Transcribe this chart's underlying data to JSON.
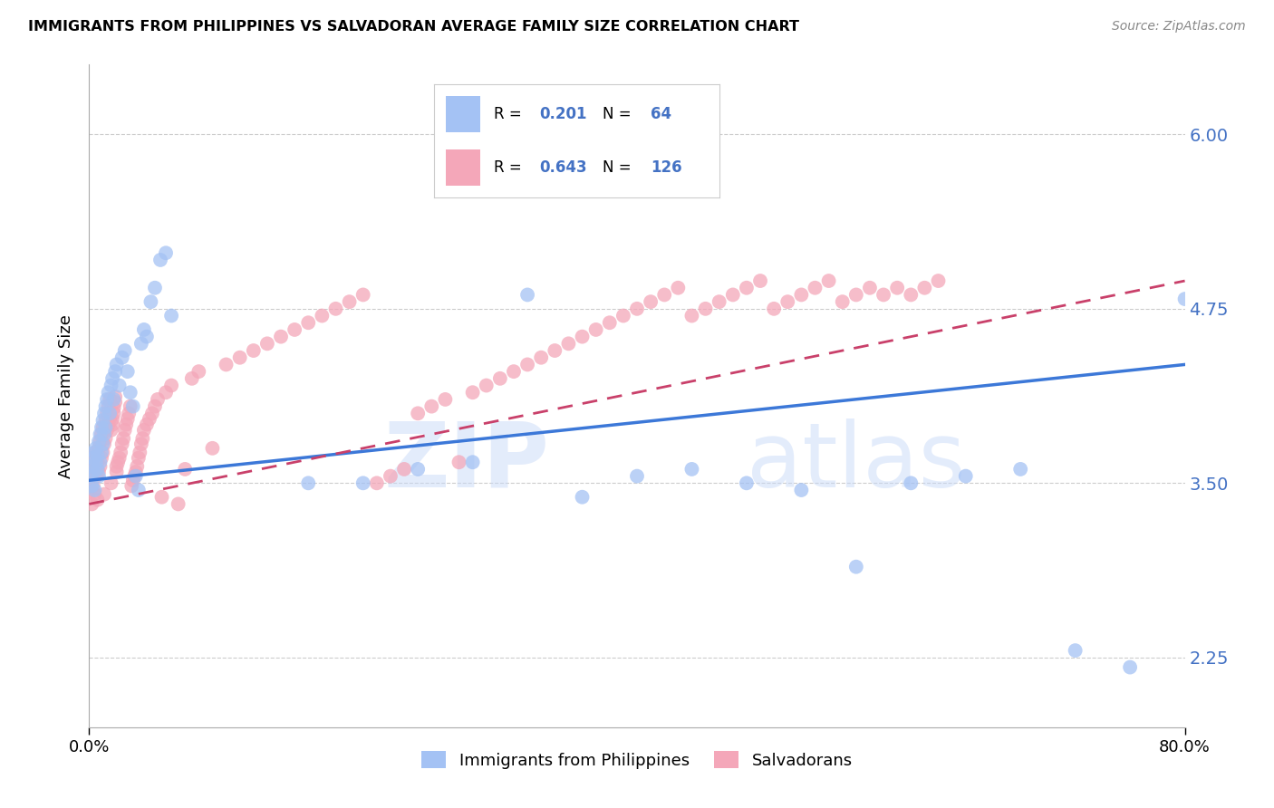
{
  "title": "IMMIGRANTS FROM PHILIPPINES VS SALVADORAN AVERAGE FAMILY SIZE CORRELATION CHART",
  "source": "Source: ZipAtlas.com",
  "ylabel": "Average Family Size",
  "legend_label1": "Immigrants from Philippines",
  "legend_label2": "Salvadorans",
  "r1": 0.201,
  "n1": 64,
  "r2": 0.643,
  "n2": 126,
  "color1": "#a4c2f4",
  "color2": "#f4a7b9",
  "line1_color": "#3c78d8",
  "line2_color": "#c9406a",
  "ytick_labels": [
    "6.00",
    "4.75",
    "3.50",
    "2.25"
  ],
  "ytick_values": [
    6.0,
    4.75,
    3.5,
    2.25
  ],
  "xlim": [
    0.0,
    0.8
  ],
  "ylim": [
    1.75,
    6.5
  ],
  "philippines_x": [
    0.001,
    0.002,
    0.002,
    0.003,
    0.003,
    0.004,
    0.004,
    0.005,
    0.005,
    0.006,
    0.006,
    0.007,
    0.007,
    0.008,
    0.008,
    0.009,
    0.009,
    0.01,
    0.01,
    0.011,
    0.011,
    0.012,
    0.012,
    0.013,
    0.014,
    0.015,
    0.016,
    0.017,
    0.018,
    0.019,
    0.02,
    0.022,
    0.024,
    0.026,
    0.028,
    0.03,
    0.032,
    0.034,
    0.036,
    0.038,
    0.04,
    0.042,
    0.045,
    0.048,
    0.052,
    0.056,
    0.06,
    0.16,
    0.2,
    0.24,
    0.28,
    0.32,
    0.36,
    0.4,
    0.44,
    0.48,
    0.52,
    0.56,
    0.6,
    0.64,
    0.68,
    0.72,
    0.76,
    0.8
  ],
  "philippines_y": [
    3.55,
    3.62,
    3.48,
    3.68,
    3.58,
    3.72,
    3.45,
    3.65,
    3.75,
    3.6,
    3.7,
    3.8,
    3.55,
    3.85,
    3.65,
    3.9,
    3.72,
    3.95,
    3.78,
    4.0,
    3.85,
    4.05,
    3.9,
    4.1,
    4.15,
    4.0,
    4.2,
    4.25,
    4.1,
    4.3,
    4.35,
    4.2,
    4.4,
    4.45,
    4.3,
    4.15,
    4.05,
    3.55,
    3.45,
    4.5,
    4.6,
    4.55,
    4.8,
    4.9,
    5.1,
    5.15,
    4.7,
    3.5,
    3.5,
    3.6,
    3.65,
    4.85,
    3.4,
    3.55,
    3.6,
    3.5,
    3.45,
    2.9,
    3.5,
    3.55,
    3.6,
    2.3,
    2.18,
    4.82
  ],
  "salvadoran_x": [
    0.001,
    0.001,
    0.002,
    0.002,
    0.003,
    0.003,
    0.004,
    0.004,
    0.005,
    0.005,
    0.006,
    0.006,
    0.007,
    0.007,
    0.008,
    0.008,
    0.009,
    0.009,
    0.01,
    0.01,
    0.011,
    0.011,
    0.012,
    0.012,
    0.013,
    0.013,
    0.014,
    0.014,
    0.015,
    0.015,
    0.016,
    0.016,
    0.017,
    0.017,
    0.018,
    0.018,
    0.019,
    0.019,
    0.02,
    0.02,
    0.021,
    0.022,
    0.023,
    0.024,
    0.025,
    0.026,
    0.027,
    0.028,
    0.029,
    0.03,
    0.031,
    0.032,
    0.033,
    0.034,
    0.035,
    0.036,
    0.037,
    0.038,
    0.039,
    0.04,
    0.042,
    0.044,
    0.046,
    0.048,
    0.05,
    0.053,
    0.056,
    0.06,
    0.065,
    0.07,
    0.075,
    0.08,
    0.09,
    0.1,
    0.11,
    0.12,
    0.13,
    0.14,
    0.15,
    0.16,
    0.17,
    0.18,
    0.19,
    0.2,
    0.21,
    0.22,
    0.23,
    0.24,
    0.25,
    0.26,
    0.27,
    0.28,
    0.29,
    0.3,
    0.31,
    0.32,
    0.33,
    0.34,
    0.35,
    0.36,
    0.37,
    0.38,
    0.39,
    0.4,
    0.41,
    0.42,
    0.43,
    0.44,
    0.45,
    0.46,
    0.47,
    0.48,
    0.49,
    0.5,
    0.51,
    0.52,
    0.53,
    0.54,
    0.55,
    0.56,
    0.57,
    0.58,
    0.59,
    0.6,
    0.61,
    0.62
  ],
  "salvadoran_y": [
    3.45,
    3.52,
    3.35,
    3.58,
    3.48,
    3.62,
    3.42,
    3.68,
    3.55,
    3.72,
    3.38,
    3.65,
    3.75,
    3.58,
    3.8,
    3.62,
    3.85,
    3.68,
    3.9,
    3.72,
    3.42,
    3.78,
    3.95,
    3.82,
    4.0,
    3.88,
    4.05,
    3.92,
    4.1,
    3.96,
    3.5,
    3.88,
    3.92,
    3.96,
    4.0,
    4.04,
    4.08,
    4.12,
    3.58,
    3.62,
    3.65,
    3.68,
    3.72,
    3.78,
    3.82,
    3.88,
    3.92,
    3.96,
    4.0,
    4.05,
    3.48,
    3.52,
    3.55,
    3.58,
    3.62,
    3.68,
    3.72,
    3.78,
    3.82,
    3.88,
    3.92,
    3.96,
    4.0,
    4.05,
    4.1,
    3.4,
    4.15,
    4.2,
    3.35,
    3.6,
    4.25,
    4.3,
    3.75,
    4.35,
    4.4,
    4.45,
    4.5,
    4.55,
    4.6,
    4.65,
    4.7,
    4.75,
    4.8,
    4.85,
    3.5,
    3.55,
    3.6,
    4.0,
    4.05,
    4.1,
    3.65,
    4.15,
    4.2,
    4.25,
    4.3,
    4.35,
    4.4,
    4.45,
    4.5,
    4.55,
    4.6,
    4.65,
    4.7,
    4.75,
    4.8,
    4.85,
    4.9,
    4.7,
    4.75,
    4.8,
    4.85,
    4.9,
    4.95,
    4.75,
    4.8,
    4.85,
    4.9,
    4.95,
    4.8,
    4.85,
    4.9,
    4.85,
    4.9,
    4.85,
    4.9,
    4.95
  ]
}
